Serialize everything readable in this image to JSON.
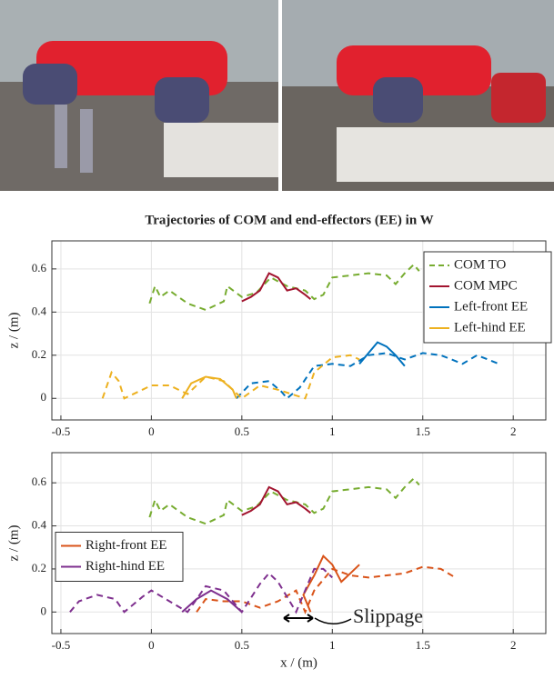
{
  "chart_data": [
    {
      "type": "line",
      "title": "Trajectories of COM and end-effectors (EE) in W",
      "ylabel": "z / (m)",
      "xlim": [
        -0.55,
        2.18
      ],
      "ylim": [
        -0.1,
        0.73
      ],
      "xticks": [
        -0.5,
        0,
        0.5,
        1,
        1.5,
        2
      ],
      "yticks": [
        0,
        0.2,
        0.4,
        0.6
      ],
      "grid": true,
      "legend": "upper right",
      "series": [
        {
          "name": "COM TO",
          "color": "#77ac30",
          "dashed": true,
          "x": [
            -0.01,
            0.02,
            0.05,
            0.1,
            0.2,
            0.3,
            0.4,
            0.42,
            0.5,
            0.58,
            0.66,
            0.75,
            0.85,
            0.9,
            0.95,
            1.0,
            1.1,
            1.2,
            1.3,
            1.35,
            1.4,
            1.45,
            1.48
          ],
          "values": [
            0.44,
            0.52,
            0.47,
            0.5,
            0.44,
            0.41,
            0.45,
            0.52,
            0.47,
            0.49,
            0.56,
            0.52,
            0.5,
            0.46,
            0.48,
            0.56,
            0.57,
            0.58,
            0.57,
            0.53,
            0.58,
            0.62,
            0.59
          ]
        },
        {
          "name": "COM MPC",
          "color": "#a2142f",
          "dashed": false,
          "x": [
            0.5,
            0.55,
            0.6,
            0.65,
            0.7,
            0.75,
            0.8,
            0.85,
            0.88
          ],
          "values": [
            0.45,
            0.47,
            0.5,
            0.58,
            0.56,
            0.5,
            0.51,
            0.48,
            0.46
          ]
        },
        {
          "name": "Left-front EE",
          "color": "#0072bd",
          "dashed": false,
          "x": [
            1.15,
            1.2,
            1.25,
            1.3,
            1.35,
            1.4
          ],
          "values": [
            0.16,
            0.21,
            0.26,
            0.24,
            0.2,
            0.15
          ]
        },
        {
          "color": "#0072bd",
          "dashed": true,
          "x": [
            0.47,
            0.55,
            0.65,
            0.72,
            0.75,
            0.82,
            0.9,
            1.0,
            1.1,
            1.2,
            1.3,
            1.4,
            1.5,
            1.6,
            1.72,
            1.8,
            1.86,
            1.92
          ],
          "values": [
            0.0,
            0.07,
            0.08,
            0.03,
            0.0,
            0.05,
            0.15,
            0.16,
            0.15,
            0.2,
            0.21,
            0.18,
            0.21,
            0.2,
            0.16,
            0.2,
            0.18,
            0.16
          ]
        },
        {
          "name": "Left-hind EE",
          "color": "#edb120",
          "dashed": false,
          "x": [
            0.17,
            0.22,
            0.3,
            0.38,
            0.45,
            0.47
          ],
          "values": [
            0.0,
            0.07,
            0.1,
            0.09,
            0.04,
            0.0
          ]
        },
        {
          "color": "#edb120",
          "dashed": true,
          "x": [
            -0.27,
            -0.22,
            -0.18,
            -0.15,
            -0.05,
            0.0,
            0.1,
            0.2,
            0.3,
            0.4,
            0.5,
            0.6,
            0.7,
            0.85,
            0.9,
            1.0,
            1.1,
            1.15
          ],
          "values": [
            0.0,
            0.12,
            0.08,
            0.0,
            0.04,
            0.06,
            0.06,
            0.02,
            0.1,
            0.08,
            0.0,
            0.06,
            0.04,
            0.0,
            0.12,
            0.19,
            0.2,
            0.18
          ]
        }
      ]
    },
    {
      "type": "line",
      "ylabel": "z / (m)",
      "xlabel": "x / (m)",
      "annotation": "Slippage",
      "xlim": [
        -0.55,
        2.18
      ],
      "ylim": [
        -0.1,
        0.74
      ],
      "xticks": [
        -0.5,
        0,
        0.5,
        1,
        1.5,
        2
      ],
      "yticks": [
        0,
        0.2,
        0.4,
        0.6
      ],
      "grid": true,
      "legend": "center left",
      "series": [
        {
          "color": "#77ac30",
          "dashed": true,
          "x": [
            -0.01,
            0.02,
            0.05,
            0.1,
            0.2,
            0.3,
            0.4,
            0.42,
            0.5,
            0.58,
            0.66,
            0.75,
            0.85,
            0.9,
            0.95,
            1.0,
            1.1,
            1.2,
            1.3,
            1.35,
            1.4,
            1.45,
            1.48
          ],
          "values": [
            0.44,
            0.52,
            0.47,
            0.5,
            0.44,
            0.41,
            0.45,
            0.52,
            0.47,
            0.49,
            0.56,
            0.52,
            0.5,
            0.46,
            0.48,
            0.56,
            0.57,
            0.58,
            0.57,
            0.53,
            0.58,
            0.62,
            0.59
          ]
        },
        {
          "color": "#a2142f",
          "dashed": false,
          "x": [
            0.5,
            0.55,
            0.6,
            0.65,
            0.7,
            0.75,
            0.8,
            0.85,
            0.88
          ],
          "values": [
            0.45,
            0.47,
            0.5,
            0.58,
            0.56,
            0.5,
            0.51,
            0.48,
            0.46
          ]
        },
        {
          "name": "Right-front EE",
          "color": "#d95319",
          "dashed": false,
          "x": [
            0.88,
            0.84,
            0.9,
            0.95,
            1.0,
            1.05,
            1.1,
            1.15
          ],
          "values": [
            0.0,
            0.08,
            0.17,
            0.26,
            0.22,
            0.14,
            0.18,
            0.22
          ]
        },
        {
          "color": "#d95319",
          "dashed": true,
          "x": [
            0.25,
            0.3,
            0.4,
            0.5,
            0.6,
            0.7,
            0.8,
            0.85,
            0.9,
            1.0,
            1.1,
            1.2,
            1.3,
            1.4,
            1.5,
            1.6,
            1.68
          ],
          "values": [
            0.0,
            0.06,
            0.05,
            0.05,
            0.02,
            0.05,
            0.1,
            0.0,
            0.1,
            0.2,
            0.17,
            0.16,
            0.17,
            0.18,
            0.21,
            0.2,
            0.16
          ]
        },
        {
          "name": "Right-hind EE",
          "color": "#7e2f8e",
          "dashed": false,
          "x": [
            0.17,
            0.25,
            0.33,
            0.42,
            0.5
          ],
          "values": [
            0.0,
            0.06,
            0.1,
            0.06,
            0.0
          ]
        },
        {
          "color": "#7e2f8e",
          "dashed": true,
          "x": [
            -0.45,
            -0.4,
            -0.3,
            -0.2,
            -0.15,
            -0.05,
            0.0,
            0.1,
            0.2,
            0.3,
            0.4,
            0.5,
            0.6,
            0.65,
            0.7,
            0.8,
            0.9,
            0.95,
            1.0
          ],
          "values": [
            0.0,
            0.05,
            0.08,
            0.06,
            0.0,
            0.07,
            0.1,
            0.05,
            0.0,
            0.12,
            0.1,
            0.0,
            0.13,
            0.18,
            0.14,
            0.0,
            0.2,
            0.2,
            0.16
          ]
        }
      ]
    }
  ]
}
